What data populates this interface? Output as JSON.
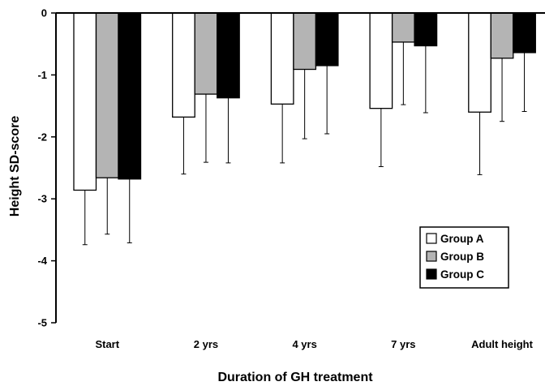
{
  "chart_data": {
    "type": "bar",
    "title": "",
    "xlabel": "Duration of GH treatment",
    "ylabel": "Height SD-score",
    "ylim": [
      -5,
      0
    ],
    "yticks": [
      "0",
      "-1",
      "-2",
      "-3",
      "-4",
      "-5"
    ],
    "ytick_values": [
      0,
      -1,
      -2,
      -3,
      -4,
      -5
    ],
    "categories": [
      "Start",
      "2 yrs",
      "4 yrs",
      "7 yrs",
      "Adult height"
    ],
    "error_bars": "downward SD whiskers",
    "legend_position": "bottom-right",
    "series": [
      {
        "name": "Group A",
        "color": "#ffffff",
        "values": [
          -2.86,
          -1.68,
          -1.47,
          -1.54,
          -1.6
        ],
        "errors": [
          0.88,
          0.92,
          0.95,
          0.94,
          1.01
        ]
      },
      {
        "name": "Group B",
        "color": "#b4b4b4",
        "values": [
          -2.66,
          -1.31,
          -0.91,
          -0.47,
          -0.73
        ],
        "errors": [
          0.91,
          1.1,
          1.12,
          1.01,
          1.02
        ]
      },
      {
        "name": "Group C",
        "color": "#000000",
        "values": [
          -2.68,
          -1.37,
          -0.85,
          -0.53,
          -0.64
        ],
        "errors": [
          1.03,
          1.05,
          1.1,
          1.08,
          0.95
        ]
      }
    ]
  }
}
